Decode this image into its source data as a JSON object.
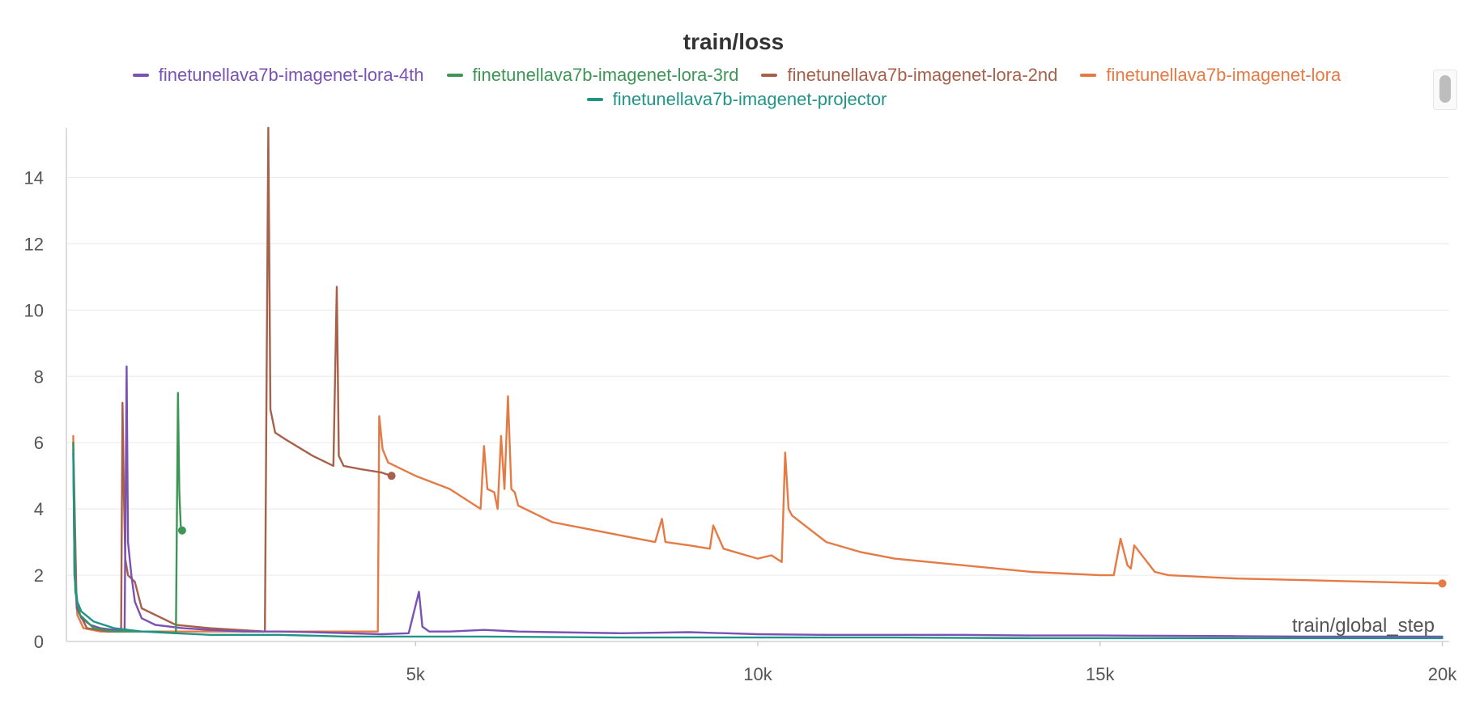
{
  "chart_data": {
    "type": "line",
    "title": "train/loss",
    "xlabel": "train/global_step",
    "ylabel": "",
    "xlim": [
      -100,
      20100
    ],
    "ylim": [
      0,
      15.5
    ],
    "x_ticks": [
      5000,
      10000,
      15000,
      20000
    ],
    "x_tick_labels": [
      "5k",
      "10k",
      "15k",
      "20k"
    ],
    "y_ticks": [
      0,
      2,
      4,
      6,
      8,
      10,
      12,
      14
    ],
    "y_tick_labels": [
      "0",
      "2",
      "4",
      "6",
      "8",
      "10",
      "12",
      "14"
    ],
    "grid": true,
    "legend_position": "top-center",
    "series": [
      {
        "name": "finetunellava7b-imagenet-lora-4th",
        "color": "#7b52b3",
        "end_marker": false,
        "x": [
          0,
          20,
          60,
          120,
          250,
          400,
          600,
          750,
          780,
          800,
          850,
          900,
          1000,
          1200,
          1600,
          2000,
          2500,
          3000,
          3500,
          4000,
          4500,
          4900,
          5050,
          5100,
          5200,
          5500,
          6000,
          6500,
          7000,
          8000,
          9000,
          10000,
          11000,
          12000,
          13000,
          14000,
          15000,
          16000,
          17000,
          18000,
          19000,
          20000
        ],
        "y": [
          5.8,
          2.0,
          1.0,
          0.7,
          0.5,
          0.4,
          0.35,
          0.3,
          8.3,
          3.0,
          2.0,
          1.2,
          0.7,
          0.5,
          0.4,
          0.35,
          0.3,
          0.3,
          0.28,
          0.25,
          0.22,
          0.25,
          1.5,
          0.45,
          0.3,
          0.3,
          0.35,
          0.3,
          0.28,
          0.25,
          0.28,
          0.22,
          0.2,
          0.2,
          0.2,
          0.18,
          0.18,
          0.17,
          0.16,
          0.15,
          0.15,
          0.15
        ]
      },
      {
        "name": "finetunellava7b-imagenet-lora-3rd",
        "color": "#3e9656",
        "end_marker": true,
        "x": [
          0,
          30,
          100,
          300,
          600,
          900,
          1200,
          1500,
          1530,
          1550,
          1570,
          1590
        ],
        "y": [
          6.0,
          1.5,
          0.8,
          0.4,
          0.3,
          0.3,
          0.3,
          0.25,
          7.5,
          4.5,
          3.5,
          3.35
        ]
      },
      {
        "name": "finetunellava7b-imagenet-lora-2nd",
        "color": "#a76049",
        "end_marker": true,
        "x": [
          0,
          50,
          200,
          500,
          700,
          720,
          740,
          760,
          800,
          900,
          1000,
          1500,
          2000,
          2800,
          2850,
          2880,
          2950,
          3100,
          3500,
          3800,
          3850,
          3880,
          3950,
          4200,
          4500,
          4650
        ],
        "y": [
          6.0,
          1.0,
          0.4,
          0.3,
          0.3,
          7.2,
          4.5,
          2.5,
          2.0,
          1.8,
          1.0,
          0.5,
          0.4,
          0.3,
          15.5,
          7.0,
          6.3,
          6.1,
          5.6,
          5.3,
          10.7,
          5.6,
          5.3,
          5.2,
          5.1,
          5.0
        ]
      },
      {
        "name": "finetunellava7b-imagenet-lora",
        "color": "#e57a45",
        "end_marker": true,
        "x": [
          0,
          20,
          60,
          150,
          400,
          1000,
          2000,
          3000,
          4000,
          4450,
          4470,
          4520,
          4600,
          5000,
          5500,
          5950,
          6000,
          6050,
          6150,
          6200,
          6250,
          6300,
          6350,
          6400,
          6450,
          6500,
          6800,
          7000,
          7500,
          8000,
          8500,
          8600,
          8650,
          9000,
          9300,
          9350,
          9500,
          10000,
          10200,
          10350,
          10400,
          10450,
          10500,
          11000,
          11500,
          12000,
          13000,
          14000,
          15000,
          15200,
          15300,
          15400,
          15450,
          15500,
          15800,
          16000,
          17000,
          18000,
          19000,
          20000
        ],
        "y": [
          6.2,
          2.0,
          0.8,
          0.4,
          0.3,
          0.3,
          0.3,
          0.3,
          0.3,
          0.3,
          6.8,
          5.8,
          5.4,
          5.0,
          4.6,
          4.0,
          5.9,
          4.6,
          4.5,
          4.0,
          6.2,
          4.6,
          7.4,
          4.6,
          4.5,
          4.1,
          3.8,
          3.6,
          3.4,
          3.2,
          3.0,
          3.7,
          3.0,
          2.9,
          2.8,
          3.5,
          2.8,
          2.5,
          2.6,
          2.4,
          5.7,
          4.0,
          3.8,
          3.0,
          2.7,
          2.5,
          2.3,
          2.1,
          2.0,
          2.0,
          3.1,
          2.3,
          2.2,
          2.9,
          2.1,
          2.0,
          1.9,
          1.85,
          1.8,
          1.75
        ]
      },
      {
        "name": "finetunellava7b-imagenet-projector",
        "color": "#229487",
        "end_marker": false,
        "x": [
          0,
          20,
          60,
          120,
          300,
          600,
          1000,
          1500,
          2000,
          3000,
          4000,
          5000,
          6000,
          8000,
          10000,
          12000,
          14000,
          16000,
          18000,
          20000
        ],
        "y": [
          5.7,
          2.0,
          1.2,
          0.9,
          0.6,
          0.4,
          0.3,
          0.25,
          0.2,
          0.2,
          0.15,
          0.15,
          0.15,
          0.12,
          0.12,
          0.12,
          0.1,
          0.1,
          0.1,
          0.1
        ]
      }
    ]
  }
}
